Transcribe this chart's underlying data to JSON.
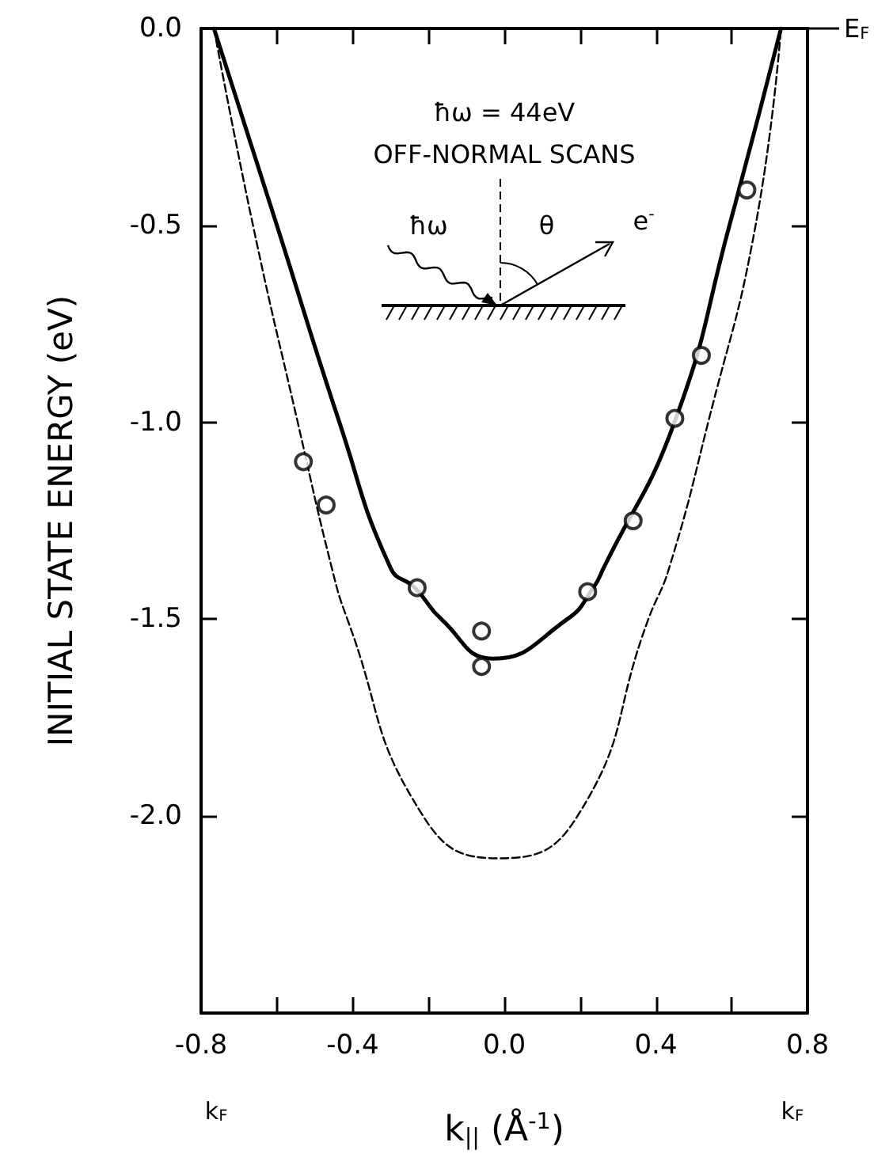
{
  "chart_data": {
    "type": "line",
    "xlabel": "k$_{||}$ (Å$^{-1}$)",
    "ylabel": "INITIAL STATE ENERGY (eV)",
    "xlim": [
      -0.8,
      0.8
    ],
    "ylim": [
      -2.5,
      0
    ],
    "xticks": [
      {
        "value": -0.8,
        "label": "-0.8"
      },
      {
        "value": -0.6,
        "label": null
      },
      {
        "value": -0.4,
        "label": "-0.4"
      },
      {
        "value": -0.2,
        "label": null
      },
      {
        "value": 0,
        "label": "0.0"
      },
      {
        "value": 0.2,
        "label": null
      },
      {
        "value": 0.4,
        "label": "0.4"
      },
      {
        "value": 0.6,
        "label": null
      },
      {
        "value": 0.8,
        "label": "0.8"
      }
    ],
    "yticks": [
      {
        "value": -2.5,
        "label": null
      },
      {
        "value": -2,
        "label": "-2.0"
      },
      {
        "value": -1.5,
        "label": "-1.5"
      },
      {
        "value": -1,
        "label": "-1.0"
      },
      {
        "value": -0.5,
        "label": "-0.5"
      },
      {
        "value": 0,
        "label": "0.0"
      }
    ],
    "grid": false,
    "series": [
      {
        "color": "#000000",
        "line_style": "solid",
        "marker": "none",
        "x": [
          -0.766,
          -0.6,
          -0.435,
          -0.3,
          -0.236,
          -0.166,
          -0.03,
          0.166,
          0.235,
          0.262,
          0.449,
          0.594,
          0.73
        ],
        "values": [
          0,
          -0.5,
          -1.0,
          -1.37,
          -1.42,
          -1.5,
          -1.6,
          -1.5,
          -1.42,
          -1.37,
          -1.0,
          -0.5,
          0
        ]
      },
      {
        "color": "#000000",
        "line_style": "dashed",
        "marker": "none",
        "x": [
          -0.766,
          -0.663,
          -0.545,
          -0.455,
          -0.414,
          -0.214,
          -0.014,
          0.193,
          0.38,
          0.435,
          0.538,
          0.663,
          0.73
        ],
        "values": [
          0,
          -0.5,
          -1.0,
          -1.37,
          -1.5,
          -2.0,
          -2.107,
          -2.0,
          -1.5,
          -1.37,
          -1.0,
          -0.5,
          0
        ]
      },
      {
        "type": "scatter",
        "color": "#000000",
        "marker": "circle",
        "x": [
          -0.53,
          -0.47,
          -0.23,
          -0.06,
          -0.06,
          0.22,
          0.34,
          0.45,
          0.52,
          0.64
        ],
        "values": [
          -1.1,
          -1.21,
          -1.42,
          -1.53,
          -1.62,
          -1.43,
          -1.25,
          -0.99,
          -0.83,
          -0.41
        ]
      }
    ],
    "ref_lines": [
      {
        "axis": "y",
        "value": 0,
        "label": "E$_{F}$"
      }
    ],
    "annotations": [
      "ħω = 44eV",
      "OFF-NORMAL SCANS",
      "ħω",
      "θ",
      "e$^{-}$",
      "k$_{F}$",
      "k$_{F}$"
    ]
  }
}
